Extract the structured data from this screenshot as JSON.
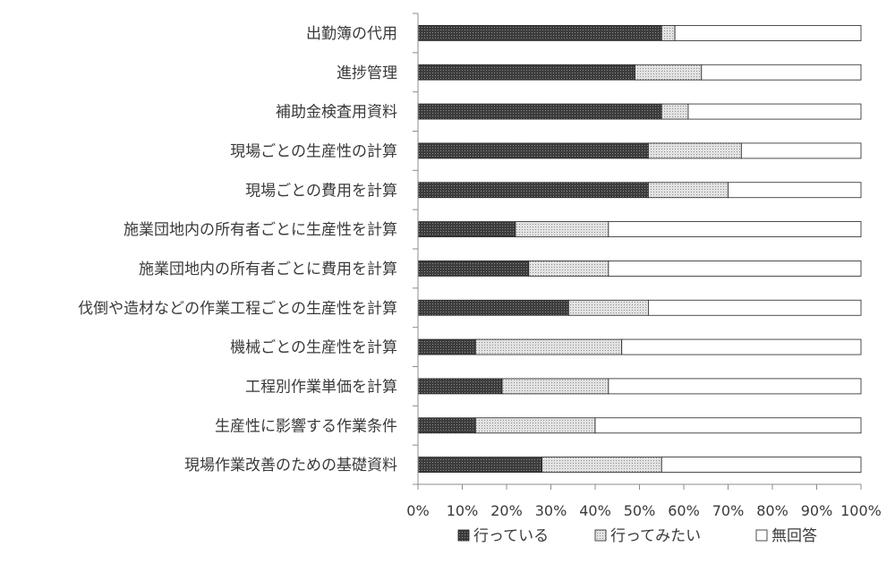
{
  "chart_data": {
    "type": "bar",
    "orientation": "horizontal",
    "stacked": true,
    "normalized": true,
    "categories": [
      "出勤簿の代用",
      "進捗管理",
      "補助金検査用資料",
      "現場ごとの生産性の計算",
      "現場ごとの費用を計算",
      "施業団地内の所有者ごとに生産性を計算",
      "施業団地内の所有者ごとに費用を計算",
      "伐倒や造材などの作業工程ごとの生産性を計算",
      "機械ごとの生産性を計算",
      "工程別作業単価を計算",
      "生産性に影響する作業条件",
      "現場作業改善のための基礎資料"
    ],
    "series": [
      {
        "name": "行っている",
        "color": "#3a3a3a",
        "pattern": "dense-dots",
        "values": [
          0.55,
          0.49,
          0.55,
          0.52,
          0.52,
          0.22,
          0.25,
          0.34,
          0.13,
          0.19,
          0.13,
          0.28
        ]
      },
      {
        "name": "行ってみたい",
        "color": "#cfcfcf",
        "pattern": "light-dots",
        "values": [
          0.03,
          0.15,
          0.06,
          0.21,
          0.18,
          0.21,
          0.18,
          0.18,
          0.33,
          0.24,
          0.27,
          0.27
        ]
      },
      {
        "name": "無回答",
        "color": "#ffffff",
        "pattern": "none",
        "values": [
          0.42,
          0.36,
          0.39,
          0.27,
          0.3,
          0.57,
          0.57,
          0.48,
          0.54,
          0.57,
          0.6,
          0.45
        ]
      }
    ],
    "xlim": [
      0,
      1
    ],
    "xticks": [
      "0%",
      "10%",
      "20%",
      "30%",
      "40%",
      "50%",
      "60%",
      "70%",
      "80%",
      "90%",
      "100%"
    ],
    "grid": false,
    "legend_position": "bottom"
  }
}
